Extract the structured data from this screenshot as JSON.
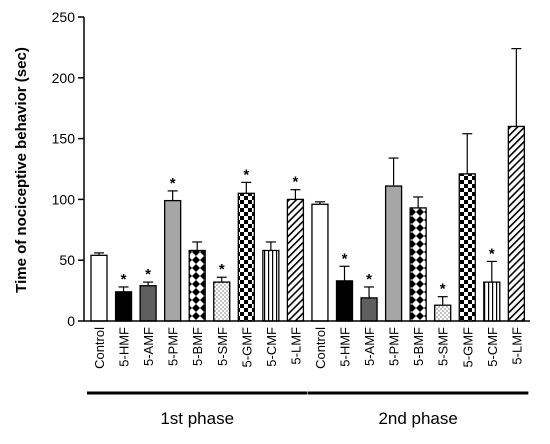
{
  "chart_data": {
    "type": "bar",
    "title": "",
    "xlabel": "",
    "ylabel": "Time of nociceptive behavior (sec)",
    "ylim": [
      0,
      250
    ],
    "yticks": [
      "0",
      "50",
      "100",
      "150",
      "200",
      "250"
    ],
    "grid": false,
    "significance_marker": "*",
    "groups": [
      {
        "name": "1st phase",
        "bars": [
          {
            "label": "Control",
            "value": 54,
            "error": 2,
            "significant": false,
            "pattern": "white"
          },
          {
            "label": "5-HMF",
            "value": 24,
            "error": 4,
            "significant": true,
            "pattern": "black"
          },
          {
            "label": "5-AMF",
            "value": 29,
            "error": 3,
            "significant": true,
            "pattern": "darkgray"
          },
          {
            "label": "5-PMF",
            "value": 99,
            "error": 8,
            "significant": true,
            "pattern": "lightgray"
          },
          {
            "label": "5-BMF",
            "value": 58,
            "error": 7,
            "significant": false,
            "pattern": "diamond"
          },
          {
            "label": "5-SMF",
            "value": 32,
            "error": 4,
            "significant": true,
            "pattern": "dots"
          },
          {
            "label": "5-GMF",
            "value": 105,
            "error": 9,
            "significant": true,
            "pattern": "checker"
          },
          {
            "label": "5-CMF",
            "value": 58,
            "error": 7,
            "significant": false,
            "pattern": "stripes-v"
          },
          {
            "label": "5-LMF",
            "value": 100,
            "error": 8,
            "significant": true,
            "pattern": "stripes-diag"
          }
        ]
      },
      {
        "name": "2nd phase",
        "bars": [
          {
            "label": "Control",
            "value": 96,
            "error": 2,
            "significant": false,
            "pattern": "white"
          },
          {
            "label": "5-HMF",
            "value": 33,
            "error": 12,
            "significant": true,
            "pattern": "black"
          },
          {
            "label": "5-AMF",
            "value": 19,
            "error": 9,
            "significant": true,
            "pattern": "darkgray"
          },
          {
            "label": "5-PMF",
            "value": 111,
            "error": 23,
            "significant": false,
            "pattern": "lightgray"
          },
          {
            "label": "5-BMF",
            "value": 93,
            "error": 9,
            "significant": false,
            "pattern": "diamond"
          },
          {
            "label": "5-SMF",
            "value": 13,
            "error": 7,
            "significant": true,
            "pattern": "dots"
          },
          {
            "label": "5-GMF",
            "value": 121,
            "error": 33,
            "significant": false,
            "pattern": "checker"
          },
          {
            "label": "5-CMF",
            "value": 32,
            "error": 17,
            "significant": true,
            "pattern": "stripes-v"
          },
          {
            "label": "5-LMF",
            "value": 160,
            "error": 64,
            "significant": false,
            "pattern": "stripes-diag"
          }
        ]
      }
    ],
    "colors": {
      "black": "#000000",
      "darkgray": "#5f5f5f",
      "lightgray": "#a6a6a6",
      "white": "#ffffff"
    }
  }
}
